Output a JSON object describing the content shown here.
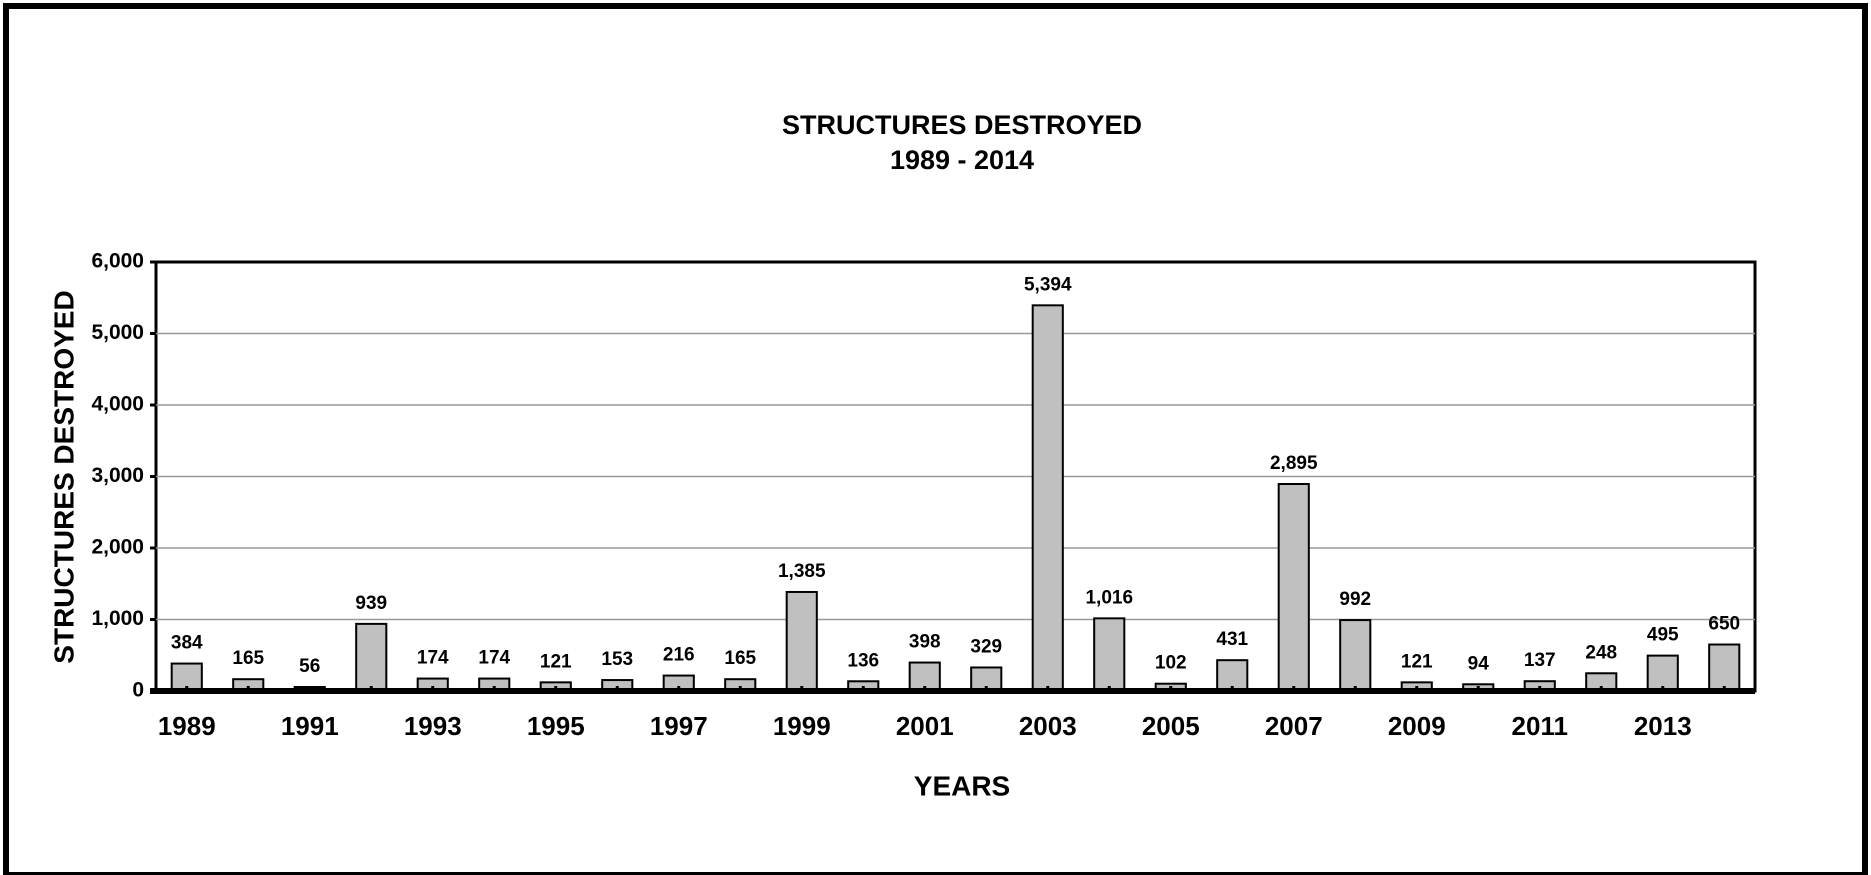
{
  "chart_data": {
    "type": "bar",
    "title": "STRUCTURES DESTROYED",
    "subtitle": "1989 - 2014",
    "x_label": "YEARS",
    "y_label": "STRUCTURES DESTROYED",
    "categories": [
      "1989",
      null,
      "1991",
      null,
      "1993",
      null,
      "1995",
      null,
      "1997",
      null,
      "1999",
      null,
      "2001",
      null,
      "2003",
      null,
      "2005",
      null,
      "2007",
      null,
      "2009",
      null,
      "2011",
      null,
      "2013",
      null
    ],
    "values": [
      384,
      165,
      56,
      939,
      174,
      174,
      121,
      153,
      216,
      165,
      1385,
      136,
      398,
      329,
      5394,
      1016,
      102,
      431,
      2895,
      992,
      121,
      94,
      137,
      248,
      495,
      650
    ],
    "value_labels": [
      "384",
      "165",
      "56",
      "939",
      "174",
      "174",
      "121",
      "153",
      "216",
      "165",
      "1,385",
      "136",
      "398",
      "329",
      "5,394",
      "1,016",
      "102",
      "431",
      "2,895",
      "992",
      "121",
      "94",
      "137",
      "248",
      "495",
      "650"
    ],
    "color": "#c0c0c0",
    "ylim": [
      0,
      6000
    ],
    "yticks": [
      0,
      {
        "value": 1000,
        "label": "1,000"
      },
      {
        "value": 2000,
        "label": "2,000"
      },
      {
        "value": 3000,
        "label": "3,000"
      },
      {
        "value": 4000,
        "label": "4,000"
      },
      {
        "value": 5000,
        "label": "5,000"
      },
      {
        "value": 6000,
        "label": "6,000"
      }
    ],
    "grid": true
  }
}
